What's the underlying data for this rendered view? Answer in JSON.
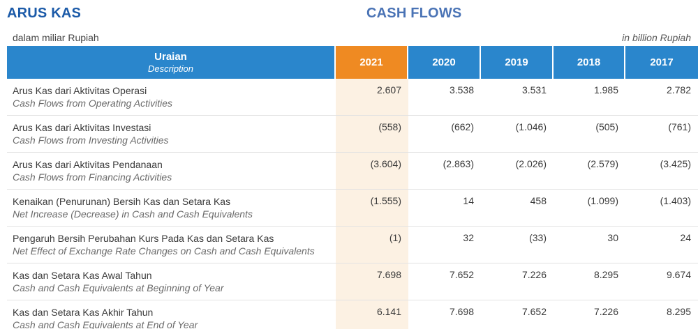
{
  "header": {
    "title_id": "ARUS KAS",
    "title_en": "CASH FLOWS",
    "unit_id": "dalam miliar Rupiah",
    "unit_en": "in billion Rupiah"
  },
  "table": {
    "desc_header_id": "Uraian",
    "desc_header_en": "Description",
    "years": [
      "2021",
      "2020",
      "2019",
      "2018",
      "2017"
    ],
    "highlight_color": "#ef8a22",
    "header_color": "#2a86cc",
    "rows": [
      {
        "id": "Arus Kas dari Aktivitas Operasi",
        "en": "Cash Flows from Operating Activities",
        "values": [
          "2.607",
          "3.538",
          "3.531",
          "1.985",
          "2.782"
        ]
      },
      {
        "id": "Arus Kas dari Aktivitas Investasi",
        "en": "Cash Flows from Investing Activities",
        "values": [
          "(558)",
          "(662)",
          "(1.046)",
          "(505)",
          "(761)"
        ]
      },
      {
        "id": "Arus Kas dari Aktivitas Pendanaan",
        "en": "Cash Flows from Financing Activities",
        "values": [
          "(3.604)",
          "(2.863)",
          "(2.026)",
          "(2.579)",
          "(3.425)"
        ]
      },
      {
        "id": "Kenaikan (Penurunan) Bersih Kas dan Setara Kas",
        "en": "Net Increase (Decrease) in Cash and Cash Equivalents",
        "values": [
          "(1.555)",
          "14",
          "458",
          "(1.099)",
          "(1.403)"
        ]
      },
      {
        "id": "Pengaruh Bersih Perubahan Kurs Pada Kas dan Setara Kas",
        "en": "Net Effect of Exchange Rate Changes on Cash and Cash Equivalents",
        "values": [
          "(1)",
          "32",
          "(33)",
          "30",
          "24"
        ]
      },
      {
        "id": "Kas dan Setara Kas Awal Tahun",
        "en": "Cash and Cash Equivalents at Beginning of Year",
        "values": [
          "7.698",
          "7.652",
          "7.226",
          "8.295",
          "9.674"
        ]
      },
      {
        "id": "Kas dan Setara Kas Akhir Tahun",
        "en": "Cash and Cash Equivalents at End of Year",
        "values": [
          "6.141",
          "7.698",
          "7.652",
          "7.226",
          "8.295"
        ]
      }
    ]
  }
}
